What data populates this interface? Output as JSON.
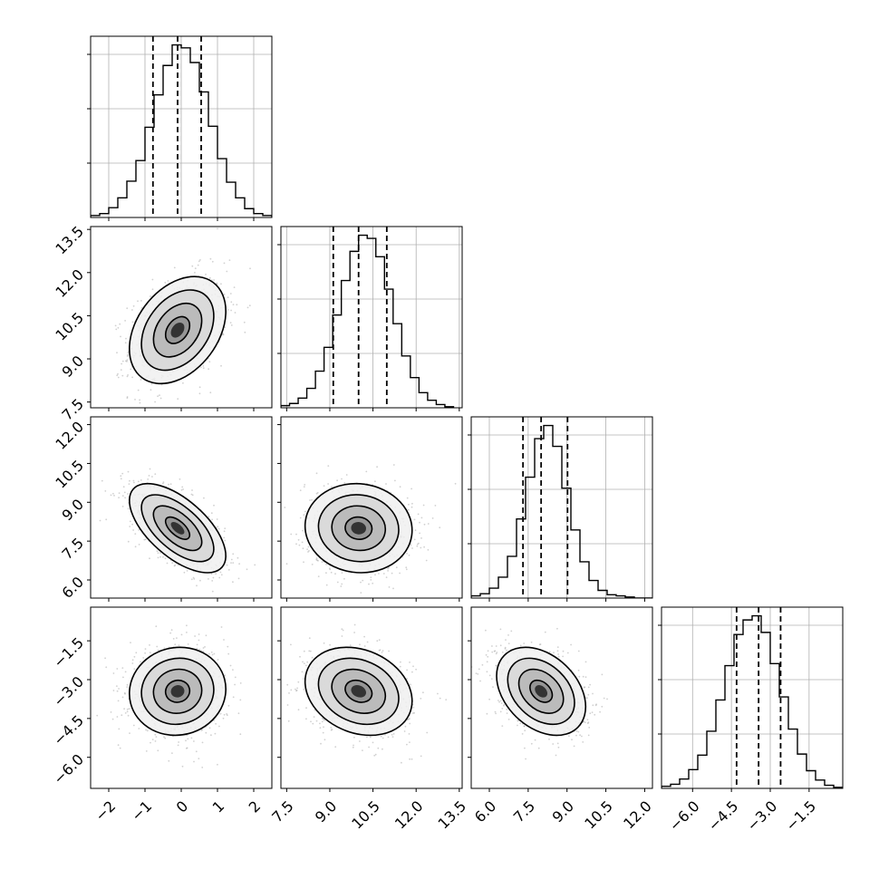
{
  "chart_data": {
    "type": "corner",
    "title": "",
    "parameters": [
      {
        "range": [
          -2.5,
          2.5
        ],
        "ticks": [
          -2,
          -1,
          0,
          1,
          2
        ],
        "tick_labels": [
          "−2",
          "−1",
          "0",
          "1",
          "2"
        ],
        "median": -0.1,
        "q16": -0.78,
        "q84": 0.55
      },
      {
        "range": [
          7.3,
          13.6
        ],
        "ticks": [
          7.5,
          9.0,
          10.5,
          12.0,
          13.5
        ],
        "tick_labels": [
          "7.5",
          "9.0",
          "10.5",
          "12.0",
          "13.5"
        ],
        "median": 10.0,
        "q16": 9.12,
        "q84": 10.98
      },
      {
        "range": [
          5.3,
          12.3
        ],
        "ticks": [
          6.0,
          7.5,
          9.0,
          10.5,
          12.0
        ],
        "tick_labels": [
          "6.0",
          "7.5",
          "9.0",
          "10.5",
          "12.0"
        ],
        "median": 8.0,
        "q16": 7.3,
        "q84": 9.02
      },
      {
        "range": [
          -7.2,
          -0.2
        ],
        "ticks": [
          -6.0,
          -4.5,
          -3.0,
          -1.5
        ],
        "tick_labels": [
          "−6.0",
          "−4.5",
          "−3.0",
          "−1.5"
        ],
        "median": -3.45,
        "q16": -4.3,
        "q84": -2.6
      }
    ],
    "histograms": [
      {
        "bin_edges": [
          -2.5,
          -2.25,
          -2.0,
          -1.75,
          -1.5,
          -1.25,
          -1.0,
          -0.75,
          -0.5,
          -0.25,
          0.0,
          0.25,
          0.5,
          0.75,
          1.0,
          1.25,
          1.5,
          1.75,
          2.0,
          2.25,
          2.5
        ],
        "counts": [
          2,
          4,
          10,
          20,
          37,
          58,
          92,
          125,
          155,
          176,
          173,
          158,
          128,
          93,
          60,
          36,
          20,
          9,
          4,
          2
        ]
      },
      {
        "bin_edges": [
          7.3,
          7.6,
          7.9,
          8.2,
          8.5,
          8.8,
          9.1,
          9.4,
          9.7,
          10.0,
          10.3,
          10.6,
          10.9,
          11.2,
          11.5,
          11.8,
          12.1,
          12.4,
          12.7,
          13.0,
          13.3
        ],
        "counts": [
          2,
          4,
          9,
          18,
          34,
          56,
          86,
          118,
          145,
          160,
          157,
          140,
          110,
          78,
          48,
          28,
          14,
          7,
          3,
          1
        ]
      },
      {
        "bin_edges": [
          5.3,
          5.65,
          6.0,
          6.35,
          6.7,
          7.05,
          7.4,
          7.75,
          8.1,
          8.45,
          8.8,
          9.15,
          9.5,
          9.85,
          10.2,
          10.55,
          10.9,
          11.25,
          11.6,
          11.95,
          12.3
        ],
        "counts": [
          2,
          4,
          9,
          19,
          38,
          72,
          110,
          145,
          157,
          138,
          100,
          62,
          33,
          16,
          7,
          3,
          2,
          1,
          0,
          0
        ]
      },
      {
        "bin_edges": [
          -7.2,
          -6.85,
          -6.5,
          -6.15,
          -5.8,
          -5.45,
          -5.1,
          -4.75,
          -4.4,
          -4.05,
          -3.7,
          -3.35,
          -3.0,
          -2.65,
          -2.3,
          -1.95,
          -1.6,
          -1.25,
          -0.9,
          -0.55,
          -0.2
        ],
        "counts": [
          2,
          4,
          9,
          18,
          32,
          55,
          85,
          118,
          148,
          162,
          166,
          150,
          120,
          88,
          57,
          33,
          17,
          8,
          3,
          1
        ]
      }
    ],
    "correlations": [
      {
        "pair": [
          1,
          0
        ],
        "rho": 0.35
      },
      {
        "pair": [
          2,
          0
        ],
        "rho": -0.62
      },
      {
        "pair": [
          2,
          1
        ],
        "rho": -0.05
      },
      {
        "pair": [
          3,
          0
        ],
        "rho": 0.05
      },
      {
        "pair": [
          3,
          1
        ],
        "rho": -0.22
      },
      {
        "pair": [
          3,
          2
        ],
        "rho": -0.35
      }
    ],
    "contour_levels": [
      "0.5σ",
      "1σ",
      "1.5σ",
      "2σ"
    ],
    "grid": true,
    "colors": {
      "line": "#000000",
      "points": "#9a9a9a",
      "grid": "#b0b0b0"
    }
  }
}
